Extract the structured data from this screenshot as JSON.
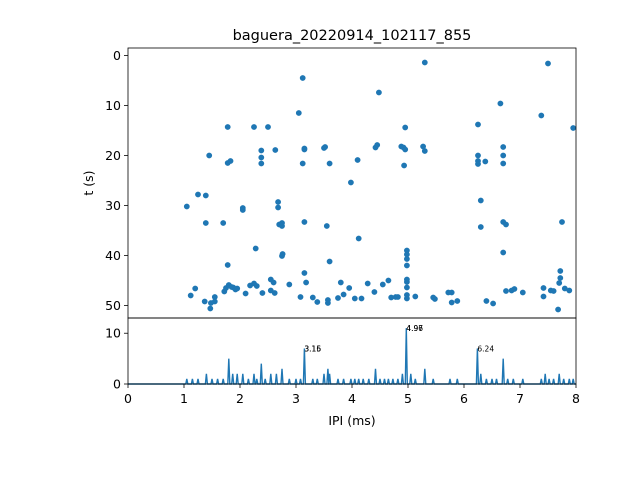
{
  "chart_data": [
    {
      "type": "scatter",
      "title": "baguera_20220914_102117_855",
      "xlabel": "",
      "ylabel": "t (s)",
      "xlim": [
        0,
        8
      ],
      "ylim": [
        52.5,
        -1.5
      ],
      "y_inverted": true,
      "yticks": [
        0,
        10,
        20,
        30,
        40,
        50
      ],
      "color": "#1f77b4",
      "points": [
        [
          1.05,
          30.2
        ],
        [
          1.12,
          48.0
        ],
        [
          1.2,
          46.6
        ],
        [
          1.25,
          27.8
        ],
        [
          1.37,
          49.2
        ],
        [
          1.39,
          28.0
        ],
        [
          1.39,
          33.5
        ],
        [
          1.45,
          20.0
        ],
        [
          1.47,
          50.6
        ],
        [
          1.48,
          49.5
        ],
        [
          1.55,
          49.2
        ],
        [
          1.55,
          48.3
        ],
        [
          1.7,
          33.5
        ],
        [
          1.72,
          47.2
        ],
        [
          1.75,
          46.5
        ],
        [
          1.78,
          14.3
        ],
        [
          1.78,
          21.5
        ],
        [
          1.78,
          41.9
        ],
        [
          1.8,
          45.9
        ],
        [
          1.83,
          21.1
        ],
        [
          1.85,
          46.3
        ],
        [
          1.88,
          46.4
        ],
        [
          1.92,
          46.8
        ],
        [
          1.95,
          46.6
        ],
        [
          2.05,
          30.5
        ],
        [
          2.05,
          30.9
        ],
        [
          2.1,
          47.6
        ],
        [
          2.18,
          46.0
        ],
        [
          2.25,
          14.3
        ],
        [
          2.25,
          45.6
        ],
        [
          2.28,
          38.6
        ],
        [
          2.3,
          46.1
        ],
        [
          2.38,
          19.0
        ],
        [
          2.38,
          20.4
        ],
        [
          2.38,
          21.6
        ],
        [
          2.4,
          47.5
        ],
        [
          2.5,
          14.3
        ],
        [
          2.55,
          47.0
        ],
        [
          2.55,
          44.8
        ],
        [
          2.6,
          45.4
        ],
        [
          2.62,
          47.5
        ],
        [
          2.63,
          18.9
        ],
        [
          2.68,
          29.3
        ],
        [
          2.68,
          30.4
        ],
        [
          2.7,
          33.8
        ],
        [
          2.75,
          34.1
        ],
        [
          2.75,
          33.5
        ],
        [
          2.75,
          40.1
        ],
        [
          2.76,
          39.7
        ],
        [
          2.88,
          45.8
        ],
        [
          3.05,
          11.5
        ],
        [
          3.08,
          48.3
        ],
        [
          3.12,
          4.5
        ],
        [
          3.12,
          21.6
        ],
        [
          3.15,
          18.8
        ],
        [
          3.15,
          18.6
        ],
        [
          3.15,
          33.3
        ],
        [
          3.15,
          43.5
        ],
        [
          3.18,
          45.4
        ],
        [
          3.3,
          48.4
        ],
        [
          3.38,
          49.3
        ],
        [
          3.5,
          18.5
        ],
        [
          3.52,
          18.3
        ],
        [
          3.55,
          34.1
        ],
        [
          3.57,
          49.5
        ],
        [
          3.57,
          48.9
        ],
        [
          3.6,
          21.6
        ],
        [
          3.6,
          41.2
        ],
        [
          3.75,
          48.5
        ],
        [
          3.8,
          45.4
        ],
        [
          3.85,
          47.8
        ],
        [
          3.95,
          46.5
        ],
        [
          3.98,
          25.4
        ],
        [
          4.05,
          48.6
        ],
        [
          4.1,
          20.9
        ],
        [
          4.12,
          36.6
        ],
        [
          4.17,
          48.6
        ],
        [
          4.28,
          45.6
        ],
        [
          4.4,
          47.3
        ],
        [
          4.42,
          18.4
        ],
        [
          4.45,
          17.9
        ],
        [
          4.48,
          7.4
        ],
        [
          4.55,
          45.8
        ],
        [
          4.65,
          45.0
        ],
        [
          4.7,
          48.4
        ],
        [
          4.78,
          48.3
        ],
        [
          4.82,
          48.3
        ],
        [
          4.88,
          18.2
        ],
        [
          4.92,
          18.4
        ],
        [
          4.93,
          22.0
        ],
        [
          4.95,
          14.4
        ],
        [
          4.95,
          18.8
        ],
        [
          4.98,
          39.0
        ],
        [
          4.98,
          39.8
        ],
        [
          4.98,
          40.7
        ],
        [
          4.98,
          42.0
        ],
        [
          4.98,
          44.8
        ],
        [
          4.98,
          45.3
        ],
        [
          4.98,
          46.4
        ],
        [
          4.98,
          47.9
        ],
        [
          4.98,
          48.6
        ],
        [
          5.13,
          48.2
        ],
        [
          5.27,
          18.2
        ],
        [
          5.3,
          1.4
        ],
        [
          5.3,
          19.1
        ],
        [
          5.45,
          48.4
        ],
        [
          5.48,
          48.7
        ],
        [
          5.72,
          47.4
        ],
        [
          5.78,
          47.4
        ],
        [
          5.78,
          49.4
        ],
        [
          5.88,
          49.1
        ],
        [
          6.25,
          13.8
        ],
        [
          6.25,
          20.0
        ],
        [
          6.25,
          21.1
        ],
        [
          6.25,
          21.7
        ],
        [
          6.3,
          29.0
        ],
        [
          6.3,
          34.3
        ],
        [
          6.38,
          21.2
        ],
        [
          6.4,
          49.1
        ],
        [
          6.52,
          49.6
        ],
        [
          6.65,
          9.6
        ],
        [
          6.7,
          18.3
        ],
        [
          6.7,
          20.0
        ],
        [
          6.7,
          21.6
        ],
        [
          6.7,
          33.3
        ],
        [
          6.7,
          39.4
        ],
        [
          6.75,
          33.8
        ],
        [
          6.75,
          47.1
        ],
        [
          6.85,
          47.0
        ],
        [
          6.9,
          46.7
        ],
        [
          7.05,
          47.4
        ],
        [
          7.38,
          12.0
        ],
        [
          7.42,
          48.2
        ],
        [
          7.42,
          46.5
        ],
        [
          7.5,
          1.6
        ],
        [
          7.55,
          47.0
        ],
        [
          7.6,
          47.1
        ],
        [
          7.68,
          50.8
        ],
        [
          7.7,
          45.5
        ],
        [
          7.72,
          44.5
        ],
        [
          7.72,
          43.1
        ],
        [
          7.75,
          33.3
        ],
        [
          7.8,
          46.6
        ],
        [
          7.88,
          47.0
        ],
        [
          7.95,
          14.5
        ]
      ]
    },
    {
      "type": "line",
      "title": "",
      "xlabel": "IPI (ms)",
      "ylabel": "",
      "xlim": [
        0,
        8
      ],
      "ylim": [
        0,
        13
      ],
      "xticks": [
        0,
        1,
        2,
        3,
        4,
        5,
        6,
        7,
        8
      ],
      "yticks": [
        0,
        10
      ],
      "color": "#1f77b4",
      "peaks": [
        {
          "x": 1.05,
          "y": 1
        },
        {
          "x": 1.15,
          "y": 1
        },
        {
          "x": 1.25,
          "y": 1
        },
        {
          "x": 1.4,
          "y": 2
        },
        {
          "x": 1.5,
          "y": 1
        },
        {
          "x": 1.6,
          "y": 1
        },
        {
          "x": 1.7,
          "y": 1
        },
        {
          "x": 1.8,
          "y": 5
        },
        {
          "x": 1.87,
          "y": 2
        },
        {
          "x": 1.95,
          "y": 2
        },
        {
          "x": 2.05,
          "y": 2
        },
        {
          "x": 2.15,
          "y": 1
        },
        {
          "x": 2.25,
          "y": 2
        },
        {
          "x": 2.3,
          "y": 1
        },
        {
          "x": 2.38,
          "y": 4
        },
        {
          "x": 2.45,
          "y": 1
        },
        {
          "x": 2.55,
          "y": 2
        },
        {
          "x": 2.65,
          "y": 2
        },
        {
          "x": 2.75,
          "y": 3
        },
        {
          "x": 2.88,
          "y": 1
        },
        {
          "x": 3.0,
          "y": 1
        },
        {
          "x": 3.08,
          "y": 1
        },
        {
          "x": 3.15,
          "y": 7
        },
        {
          "x": 3.3,
          "y": 1
        },
        {
          "x": 3.38,
          "y": 1
        },
        {
          "x": 3.5,
          "y": 2
        },
        {
          "x": 3.57,
          "y": 3
        },
        {
          "x": 3.6,
          "y": 2
        },
        {
          "x": 3.75,
          "y": 1
        },
        {
          "x": 3.85,
          "y": 1
        },
        {
          "x": 3.98,
          "y": 1
        },
        {
          "x": 4.05,
          "y": 1
        },
        {
          "x": 4.12,
          "y": 1
        },
        {
          "x": 4.2,
          "y": 1
        },
        {
          "x": 4.3,
          "y": 1
        },
        {
          "x": 4.42,
          "y": 3
        },
        {
          "x": 4.5,
          "y": 1
        },
        {
          "x": 4.58,
          "y": 1
        },
        {
          "x": 4.65,
          "y": 1
        },
        {
          "x": 4.73,
          "y": 1
        },
        {
          "x": 4.82,
          "y": 1
        },
        {
          "x": 4.9,
          "y": 2
        },
        {
          "x": 4.97,
          "y": 11
        },
        {
          "x": 5.05,
          "y": 2
        },
        {
          "x": 5.13,
          "y": 1
        },
        {
          "x": 5.3,
          "y": 3
        },
        {
          "x": 5.45,
          "y": 1
        },
        {
          "x": 5.75,
          "y": 1
        },
        {
          "x": 5.88,
          "y": 1
        },
        {
          "x": 6.24,
          "y": 7
        },
        {
          "x": 6.3,
          "y": 2
        },
        {
          "x": 6.4,
          "y": 1
        },
        {
          "x": 6.5,
          "y": 1
        },
        {
          "x": 6.58,
          "y": 1
        },
        {
          "x": 6.7,
          "y": 5
        },
        {
          "x": 6.78,
          "y": 1
        },
        {
          "x": 6.88,
          "y": 1
        },
        {
          "x": 7.05,
          "y": 1
        },
        {
          "x": 7.38,
          "y": 1
        },
        {
          "x": 7.45,
          "y": 2
        },
        {
          "x": 7.52,
          "y": 1
        },
        {
          "x": 7.6,
          "y": 1
        },
        {
          "x": 7.7,
          "y": 2
        },
        {
          "x": 7.78,
          "y": 1
        },
        {
          "x": 7.88,
          "y": 1
        },
        {
          "x": 7.95,
          "y": 1
        }
      ],
      "annotations": [
        {
          "x": 3.15,
          "y": 7,
          "text": "3.15"
        },
        {
          "x": 3.15,
          "y": 7,
          "text": "3.16"
        },
        {
          "x": 4.97,
          "y": 11,
          "text": "4.96"
        },
        {
          "x": 4.97,
          "y": 11,
          "text": "4.97"
        },
        {
          "x": 6.24,
          "y": 7,
          "text": "6.24"
        }
      ]
    }
  ]
}
